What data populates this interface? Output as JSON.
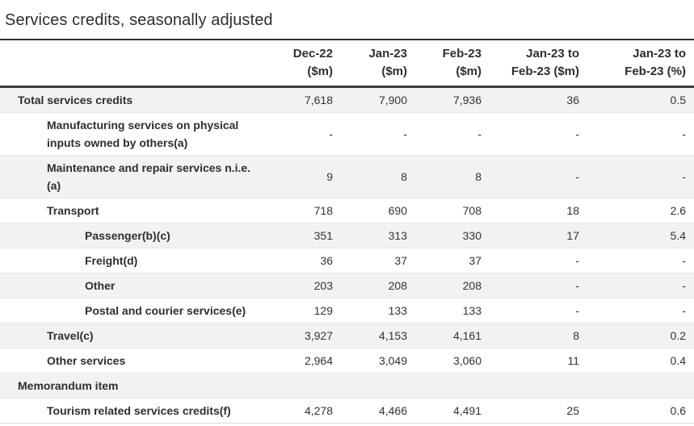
{
  "page": {
    "title": "Services credits, seasonally adjusted"
  },
  "colors": {
    "text": "#333333",
    "stripe": "#f2f2f2",
    "rule-dark": "#3b3b3b",
    "rule-title": "#2b2b2b",
    "rule-light": "#e7e7e7"
  },
  "table": {
    "columns": [
      {
        "label": "Dec-22\n($m)"
      },
      {
        "label": "Jan-23\n($m)"
      },
      {
        "label": "Feb-23\n($m)"
      },
      {
        "label": "Jan-23 to\nFeb-23 ($m)"
      },
      {
        "label": "Jan-23 to\nFeb-23 (%)"
      }
    ],
    "rows": [
      {
        "label": "Total services credits",
        "level": 1,
        "values": [
          "7,618",
          "7,900",
          "7,936",
          "36",
          "0.5"
        ]
      },
      {
        "label": "Manufacturing services on physical\ninputs owned by others(a)",
        "level": 2,
        "values": [
          "-",
          "-",
          "-",
          "-",
          "-"
        ]
      },
      {
        "label": "Maintenance and repair services n.i.e.\n(a)",
        "level": 2,
        "values": [
          "9",
          "8",
          "8",
          "-",
          "-"
        ]
      },
      {
        "label": "Transport",
        "level": 2,
        "values": [
          "718",
          "690",
          "708",
          "18",
          "2.6"
        ]
      },
      {
        "label": "Passenger(b)(c)",
        "level": 3,
        "values": [
          "351",
          "313",
          "330",
          "17",
          "5.4"
        ]
      },
      {
        "label": "Freight(d)",
        "level": 3,
        "values": [
          "36",
          "37",
          "37",
          "-",
          "-"
        ]
      },
      {
        "label": "Other",
        "level": 3,
        "values": [
          "203",
          "208",
          "208",
          "-",
          "-"
        ]
      },
      {
        "label": "Postal and courier services(e)",
        "level": 3,
        "values": [
          "129",
          "133",
          "133",
          "-",
          "-"
        ]
      },
      {
        "label": "Travel(c)",
        "level": 2,
        "values": [
          "3,927",
          "4,153",
          "4,161",
          "8",
          "0.2"
        ]
      },
      {
        "label": "Other services",
        "level": 2,
        "values": [
          "2,964",
          "3,049",
          "3,060",
          "11",
          "0.4"
        ]
      },
      {
        "label": "Memorandum item",
        "level": 1,
        "values": [
          "",
          "",
          "",
          "",
          ""
        ]
      },
      {
        "label": "Tourism related services credits(f)",
        "level": 2,
        "values": [
          "4,278",
          "4,466",
          "4,491",
          "25",
          "0.6"
        ]
      }
    ]
  }
}
